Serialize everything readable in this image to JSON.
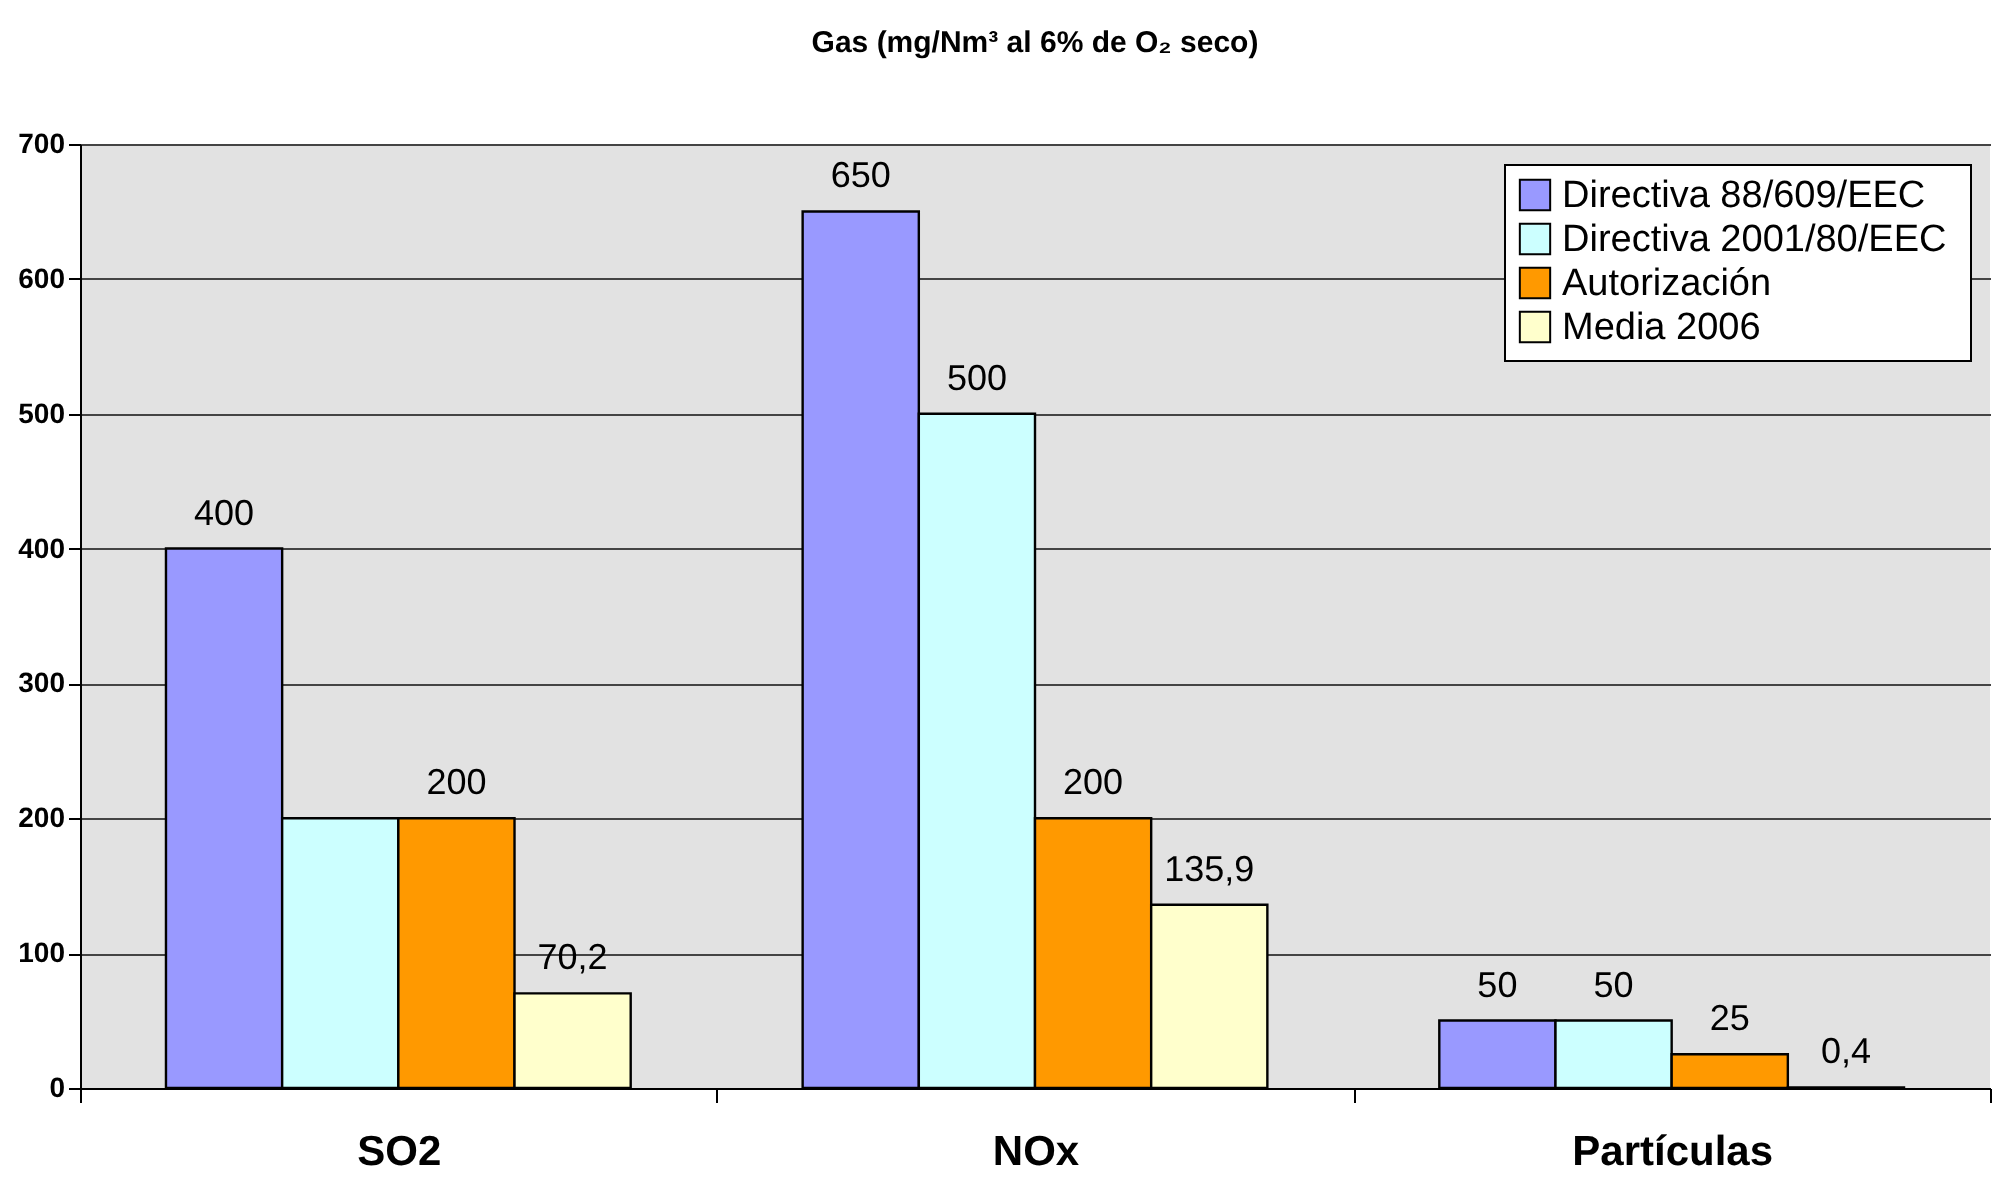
{
  "chart_data": {
    "type": "bar",
    "title": "Gas  (mg/Nm³ al 6% de O₂ seco)",
    "categories": [
      "SO2",
      "NOx",
      "Partículas"
    ],
    "series": [
      {
        "name": "Directiva 88/609/EEC",
        "color": "#9999ff",
        "values": [
          400,
          650,
          50
        ],
        "value_labels": [
          "400",
          "650",
          "50"
        ]
      },
      {
        "name": "Directiva  2001/80/EEC",
        "color": "#ccffff",
        "values": [
          200,
          500,
          50
        ],
        "value_labels": [
          null,
          "500",
          "50"
        ]
      },
      {
        "name": "Autorización",
        "color": "#ff9900",
        "values": [
          200,
          200,
          25
        ],
        "value_labels": [
          "200",
          "200",
          "25"
        ]
      },
      {
        "name": "Media 2006",
        "color": "#ffffcc",
        "values": [
          70.2,
          135.9,
          0.4
        ],
        "value_labels": [
          "70,2",
          "135,9",
          "0,4"
        ]
      }
    ],
    "ylim": [
      0,
      700
    ],
    "yticks": [
      0,
      100,
      200,
      300,
      400,
      500,
      600,
      700
    ],
    "grid": "y",
    "legend": "top right"
  }
}
